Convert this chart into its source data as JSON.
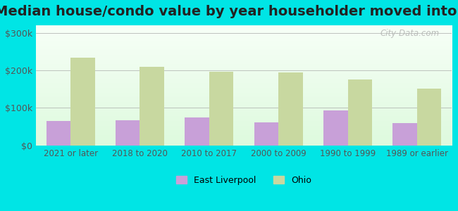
{
  "title": "Median house/condo value by year householder moved into unit",
  "categories": [
    "2021 or later",
    "2018 to 2020",
    "2010 to 2017",
    "2000 to 2009",
    "1990 to 1999",
    "1989 or earlier"
  ],
  "east_liverpool_values": [
    65000,
    68000,
    75000,
    62000,
    93000,
    60000
  ],
  "ohio_values": [
    233000,
    210000,
    196000,
    195000,
    175000,
    152000
  ],
  "east_liverpool_color": "#c8a0d8",
  "ohio_color": "#c8d8a0",
  "bar_width": 0.35,
  "ylim": [
    0,
    320000
  ],
  "yticks": [
    0,
    100000,
    200000,
    300000
  ],
  "ytick_labels": [
    "$0",
    "$100k",
    "$200k",
    "$300k"
  ],
  "background_color": "#00e5e5",
  "legend_east_liverpool": "East Liverpool",
  "legend_ohio": "Ohio",
  "title_fontsize": 14,
  "watermark": "City-Data.com"
}
